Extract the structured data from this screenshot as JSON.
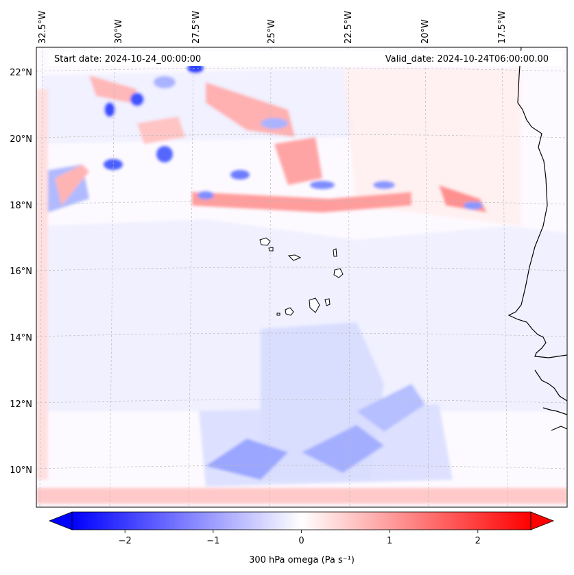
{
  "map": {
    "start_date": "Start date: 2024-10-24_00:00:00",
    "valid_date": "Valid_date: 2024-10-24T06:00:00.00",
    "lon_labels": [
      "32.5°W",
      "30°W",
      "27.5°W",
      "25°W",
      "22.5°W",
      "20°W",
      "17.5°W"
    ],
    "lat_labels": [
      "22°N",
      "20°N",
      "18°N",
      "16°N",
      "14°N",
      "12°N",
      "10°N"
    ],
    "field": "300 hPa omega",
    "colormap": "bwr",
    "gridlines": true,
    "colors": {
      "negative": "#0000ff",
      "zero": "#ffffff",
      "positive": "#ff0000",
      "coast": "#000000",
      "grid": "#bbbbbb"
    }
  },
  "colorbar": {
    "label": "300 hPa omega (Pa s⁻¹)",
    "min": -2.6,
    "max": 2.6,
    "extend": "both",
    "ticks": [
      {
        "value": -2,
        "label": "−2"
      },
      {
        "value": -1,
        "label": "−1"
      },
      {
        "value": 0,
        "label": "0"
      },
      {
        "value": 1,
        "label": "1"
      },
      {
        "value": 2,
        "label": "2"
      }
    ]
  }
}
